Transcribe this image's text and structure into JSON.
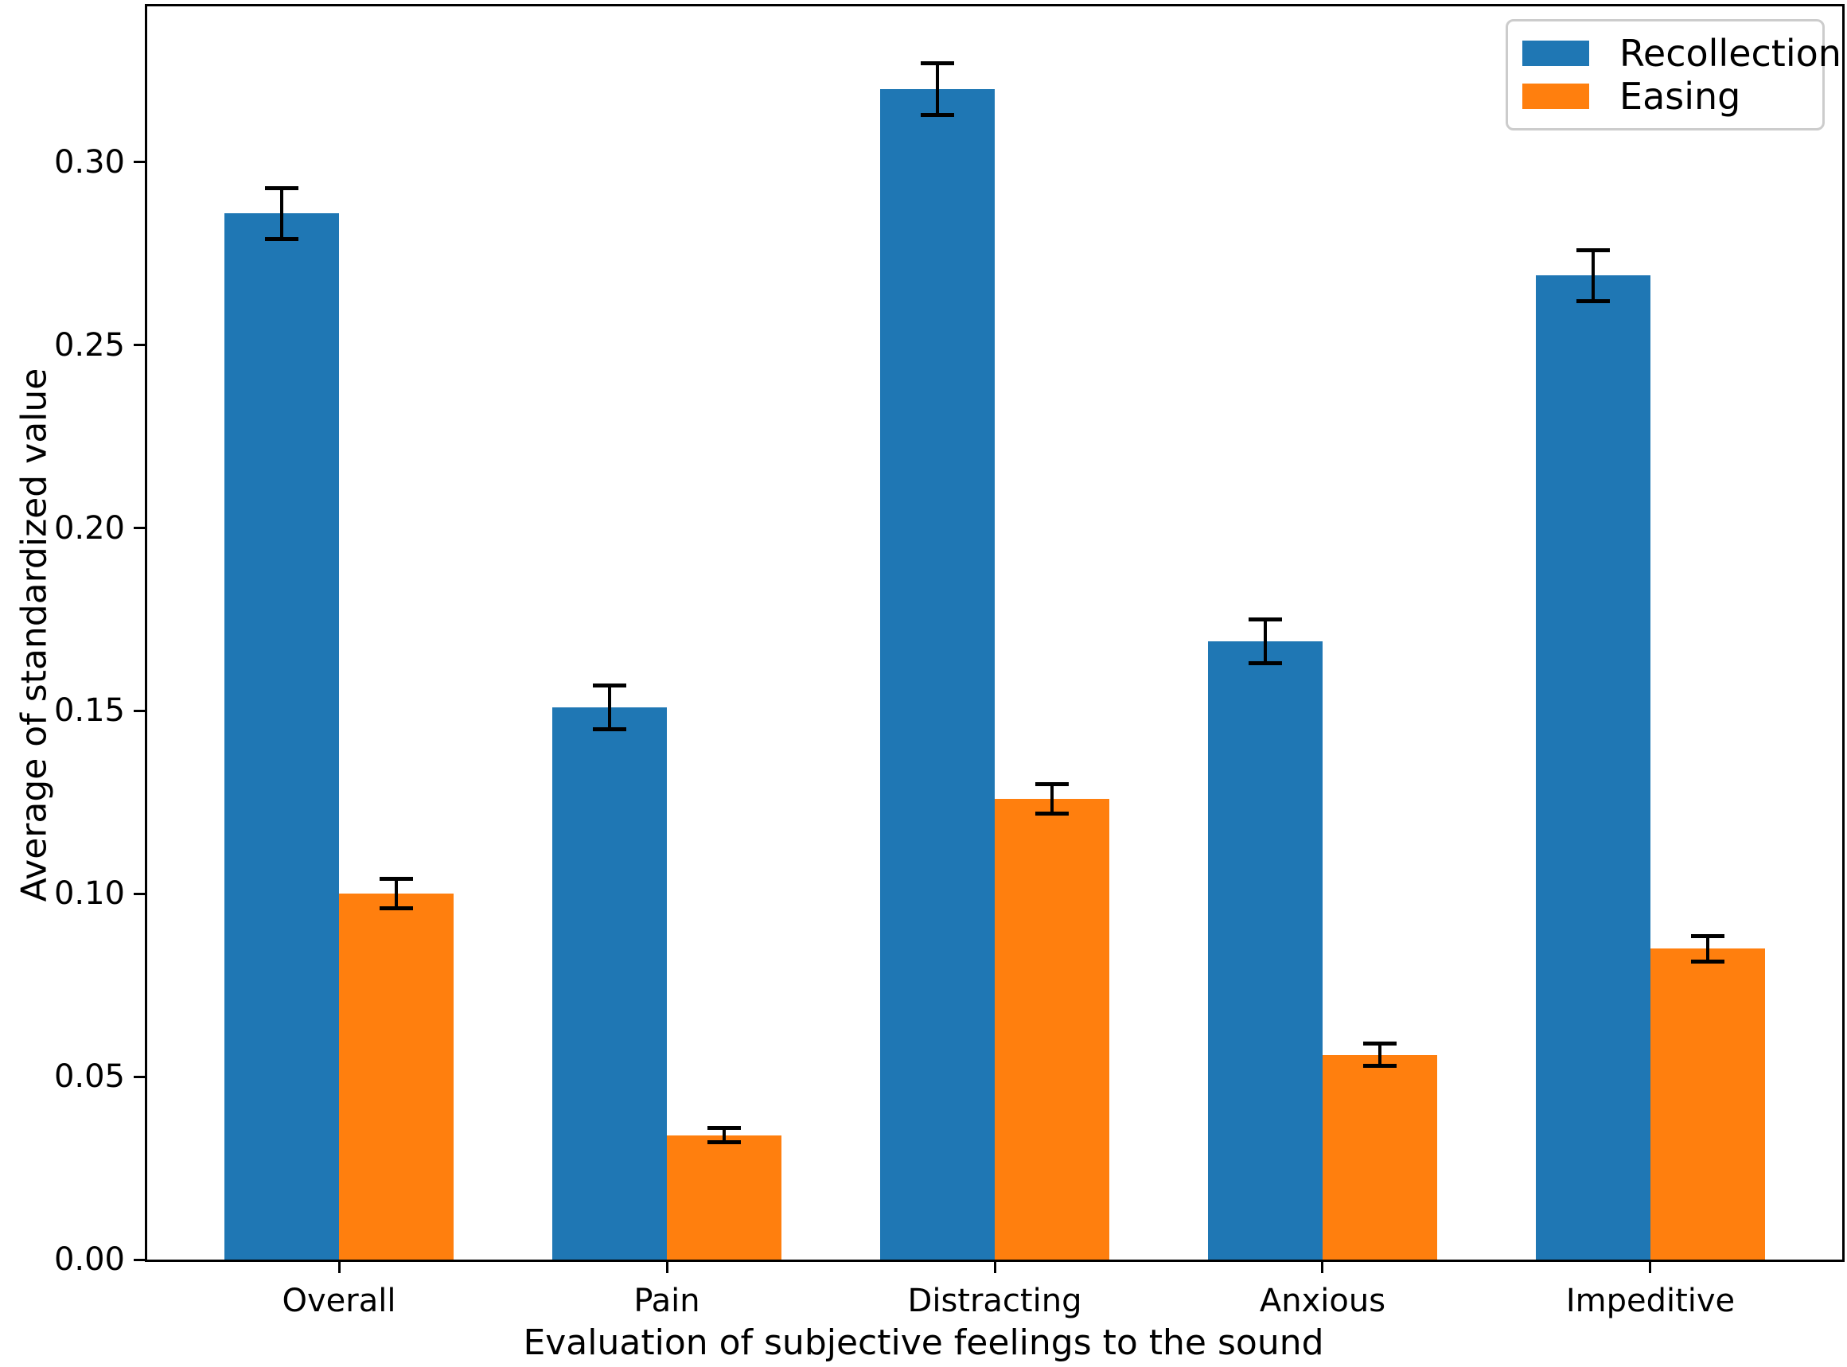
{
  "chart_data": {
    "type": "bar",
    "title": "",
    "xlabel": "Evaluation of subjective feelings to the sound",
    "ylabel": "Average of standardized value",
    "categories": [
      "Overall",
      "Pain",
      "Distracting",
      "Anxious",
      "Impeditive"
    ],
    "series": [
      {
        "name": "Recollection",
        "color": "#1f77b4",
        "values": [
          0.286,
          0.151,
          0.32,
          0.169,
          0.269
        ],
        "errors": [
          0.007,
          0.006,
          0.007,
          0.006,
          0.007
        ]
      },
      {
        "name": "Easing",
        "color": "#ff7f0e",
        "values": [
          0.1,
          0.034,
          0.126,
          0.056,
          0.085
        ],
        "errors": [
          0.004,
          0.002,
          0.004,
          0.003,
          0.0035
        ]
      }
    ],
    "y_ticks": [
      "0.00",
      "0.05",
      "0.10",
      "0.15",
      "0.20",
      "0.25",
      "0.30"
    ],
    "ylim": [
      0,
      0.3426
    ],
    "bar_width_frac": 0.35,
    "grid": false,
    "legend_position": "upper-right",
    "error_bar_color": "#000000",
    "axis_color": "#000000"
  }
}
